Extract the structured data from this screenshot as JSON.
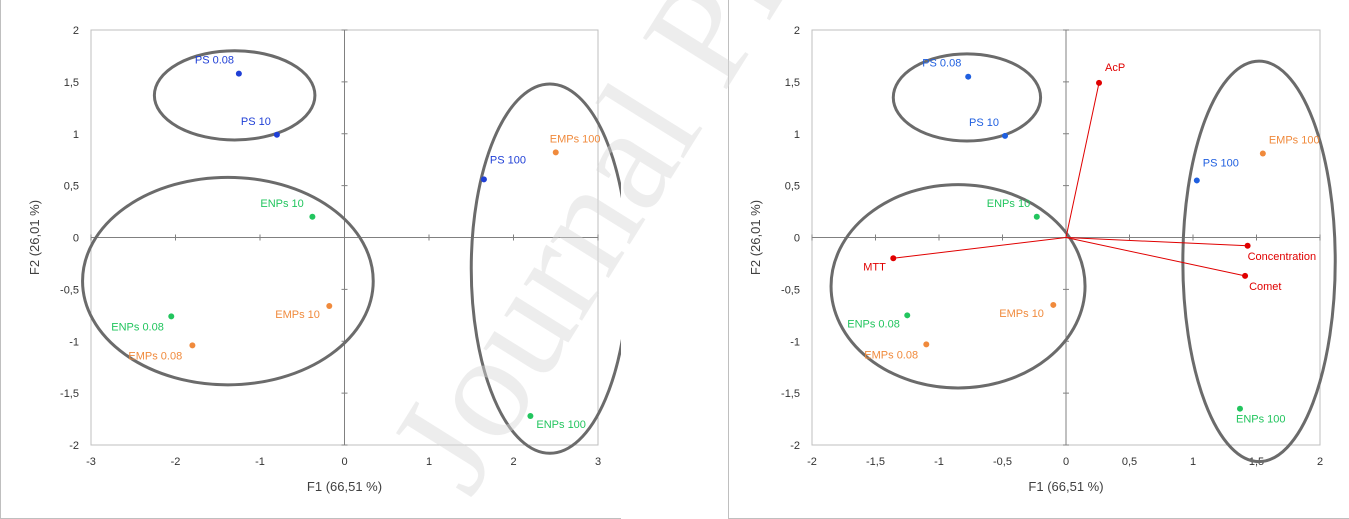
{
  "colors": {
    "PS": "#1f3fd6",
    "PS_right": "#1f5fe0",
    "ENPs": "#22c55e",
    "EMPs": "#f08a3c",
    "variables": "#e00000",
    "ellipse": "#6b6b6b",
    "axis": "#808080"
  },
  "watermark": "Journal Pre-proof",
  "chart_data": [
    {
      "type": "scatter",
      "xlabel": "F1 (66,51 %)",
      "ylabel": "F2 (26,01 %)",
      "xlim": [
        -3,
        3
      ],
      "ylim": [
        -2,
        2
      ],
      "xticks": [
        "-3",
        "-2",
        "-1",
        "0",
        "1",
        "2",
        "3"
      ],
      "yticks": [
        "2",
        "1,5",
        "1",
        "0,5",
        "0",
        "-0,5",
        "-1",
        "-1,5",
        "-2"
      ],
      "points": [
        {
          "label": "PS 0.08",
          "x": -1.25,
          "y": 1.58,
          "group": "PS"
        },
        {
          "label": "PS 10",
          "x": -0.8,
          "y": 0.99,
          "group": "PS"
        },
        {
          "label": "PS 100",
          "x": 1.65,
          "y": 0.56,
          "group": "PS"
        },
        {
          "label": "EMPs 100",
          "x": 2.5,
          "y": 0.82,
          "group": "EMPs"
        },
        {
          "label": "ENPs 10",
          "x": -0.38,
          "y": 0.2,
          "group": "ENPs"
        },
        {
          "label": "EMPs 10",
          "x": -0.18,
          "y": -0.66,
          "group": "EMPs"
        },
        {
          "label": "ENPs 0.08",
          "x": -2.05,
          "y": -0.76,
          "group": "ENPs"
        },
        {
          "label": "EMPs 0.08",
          "x": -1.8,
          "y": -1.04,
          "group": "EMPs"
        },
        {
          "label": "ENPs 100",
          "x": 2.2,
          "y": -1.72,
          "group": "ENPs"
        }
      ],
      "ellipses": [
        {
          "cx": -1.3,
          "cy": 1.37,
          "rx": 0.95,
          "ry": 0.43
        },
        {
          "cx": -1.38,
          "cy": -0.42,
          "rx": 1.72,
          "ry": 1.0
        },
        {
          "cx": 2.43,
          "cy": -0.3,
          "rx": 0.93,
          "ry": 1.78
        }
      ]
    },
    {
      "type": "scatter",
      "xlabel": "F1 (66,51 %)",
      "ylabel": "F2 (26,01 %)",
      "xlim": [
        -2,
        2
      ],
      "ylim": [
        -2,
        2
      ],
      "xticks": [
        "-2",
        "-1,5",
        "-1",
        "-0,5",
        "0",
        "0,5",
        "1",
        "1,5",
        "2"
      ],
      "yticks": [
        "2",
        "1,5",
        "1",
        "0,5",
        "0",
        "-0,5",
        "-1",
        "-1,5",
        "-2"
      ],
      "points": [
        {
          "label": "PS 0.08",
          "x": -0.77,
          "y": 1.55,
          "group": "PS"
        },
        {
          "label": "PS 10",
          "x": -0.48,
          "y": 0.98,
          "group": "PS"
        },
        {
          "label": "PS 100",
          "x": 1.03,
          "y": 0.55,
          "group": "PS"
        },
        {
          "label": "EMPs 100",
          "x": 1.55,
          "y": 0.81,
          "group": "EMPs"
        },
        {
          "label": "ENPs 10",
          "x": -0.23,
          "y": 0.2,
          "group": "ENPs"
        },
        {
          "label": "EMPs 10",
          "x": -0.1,
          "y": -0.65,
          "group": "EMPs"
        },
        {
          "label": "ENPs 0.08",
          "x": -1.25,
          "y": -0.75,
          "group": "ENPs"
        },
        {
          "label": "EMPs 0.08",
          "x": -1.1,
          "y": -1.03,
          "group": "EMPs"
        },
        {
          "label": "ENPs 100",
          "x": 1.37,
          "y": -1.65,
          "group": "ENPs"
        }
      ],
      "variables": [
        {
          "label": "AcP",
          "x": 0.26,
          "y": 1.49
        },
        {
          "label": "MTT",
          "x": -1.36,
          "y": -0.2
        },
        {
          "label": "Concentration",
          "x": 1.43,
          "y": -0.08
        },
        {
          "label": "Comet",
          "x": 1.41,
          "y": -0.37
        }
      ],
      "ellipses": [
        {
          "cx": -0.78,
          "cy": 1.35,
          "rx": 0.58,
          "ry": 0.42
        },
        {
          "cx": -0.85,
          "cy": -0.47,
          "rx": 1.0,
          "ry": 0.98
        },
        {
          "cx": 1.52,
          "cy": -0.23,
          "rx": 0.6,
          "ry": 1.93
        }
      ]
    }
  ]
}
